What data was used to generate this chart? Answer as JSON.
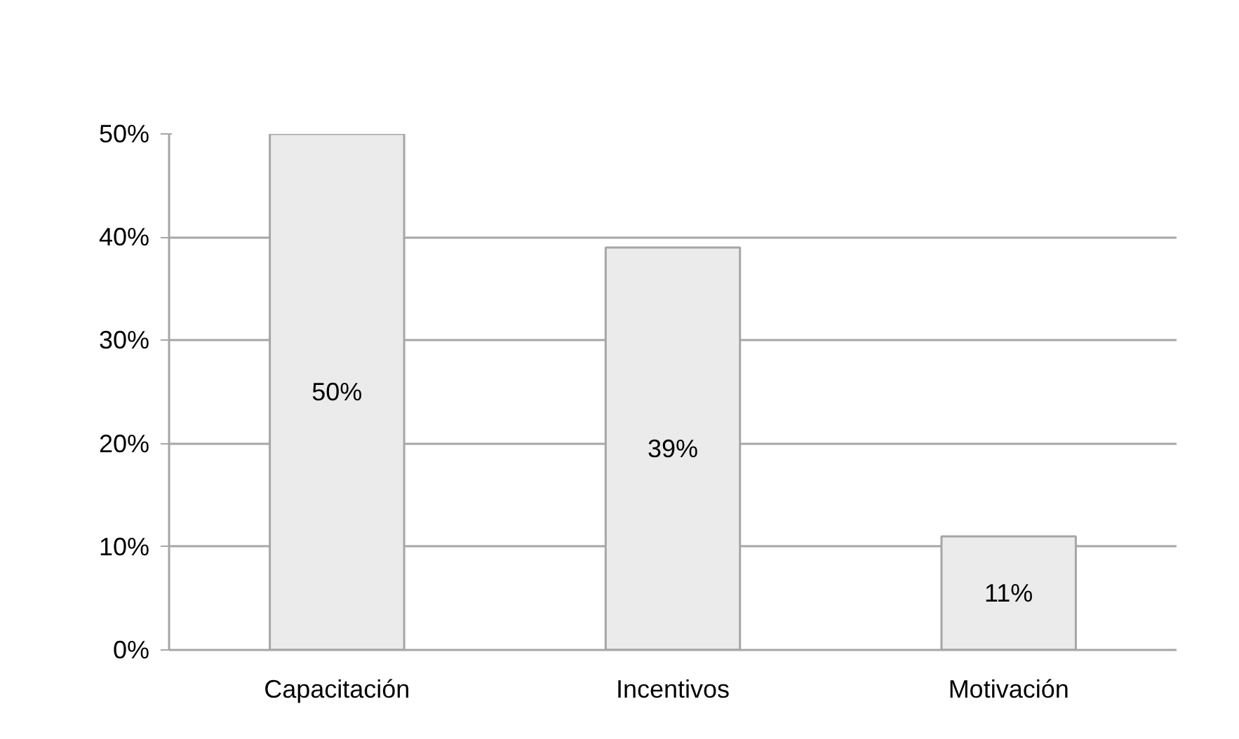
{
  "chart_data": {
    "type": "bar",
    "categories": [
      "Capacitación",
      "Incentivos",
      "Motivación"
    ],
    "values": [
      50,
      39,
      11
    ],
    "value_labels": [
      "50%",
      "39%",
      "11%"
    ],
    "color": "#ebebeb",
    "ylim": [
      0,
      50
    ],
    "yticks": [
      {
        "value": 0,
        "label": "0%"
      },
      {
        "value": 10,
        "label": "10%"
      },
      {
        "value": 20,
        "label": "20%"
      },
      {
        "value": 30,
        "label": "30%"
      },
      {
        "value": 40,
        "label": "40%"
      },
      {
        "value": 50,
        "label": "50%"
      }
    ],
    "grid": "y"
  }
}
